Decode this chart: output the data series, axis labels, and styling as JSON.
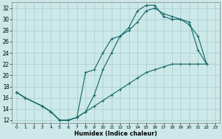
{
  "xlabel": "Humidex (Indice chaleur)",
  "bg_color": "#cce8e8",
  "line_color": "#1a6b6b",
  "grid_color": "#aad0d0",
  "xlim": [
    -0.5,
    23.5
  ],
  "ylim": [
    11.5,
    33
  ],
  "xtick_labels": [
    "0",
    "1",
    "2",
    "3",
    "4",
    "5",
    "6",
    "7",
    "8",
    "9",
    "10",
    "11",
    "12",
    "13",
    "14",
    "15",
    "16",
    "17",
    "18",
    "19",
    "20",
    "21",
    "22",
    "23"
  ],
  "ytick_values": [
    12,
    14,
    16,
    18,
    20,
    22,
    24,
    26,
    28,
    30,
    32
  ],
  "line1_x": [
    0,
    1,
    3,
    4,
    5,
    6,
    7,
    8,
    9,
    10,
    11,
    12,
    13,
    14,
    15,
    16,
    17,
    18,
    19,
    20,
    21,
    22
  ],
  "line1_y": [
    17,
    16,
    14.5,
    13.5,
    12,
    12,
    12.5,
    13.5,
    16.5,
    21,
    24,
    27,
    28,
    29.5,
    31.5,
    32,
    31,
    30.5,
    30,
    29,
    27,
    22
  ],
  "line2_x": [
    0,
    1,
    3,
    4,
    5,
    6,
    7,
    8,
    9,
    10,
    11,
    12,
    13,
    14,
    15,
    16,
    17,
    18,
    19,
    20,
    21,
    22
  ],
  "line2_y": [
    17,
    16,
    14.5,
    13.5,
    12,
    12,
    12.5,
    20.5,
    21,
    24,
    26.5,
    27,
    28.5,
    31.5,
    32.5,
    32.5,
    30.5,
    30,
    30,
    29.5,
    24.5,
    22
  ],
  "line3_x": [
    0,
    1,
    3,
    4,
    5,
    6,
    7,
    8,
    9,
    10,
    11,
    12,
    13,
    14,
    15,
    16,
    17,
    18,
    19,
    20,
    21,
    22
  ],
  "line3_y": [
    17,
    16,
    14.5,
    13.5,
    12,
    12,
    12.5,
    13.5,
    14.5,
    15.5,
    16.5,
    17.5,
    18.5,
    19.5,
    20.5,
    21,
    21.5,
    22,
    22,
    22,
    22,
    22
  ]
}
